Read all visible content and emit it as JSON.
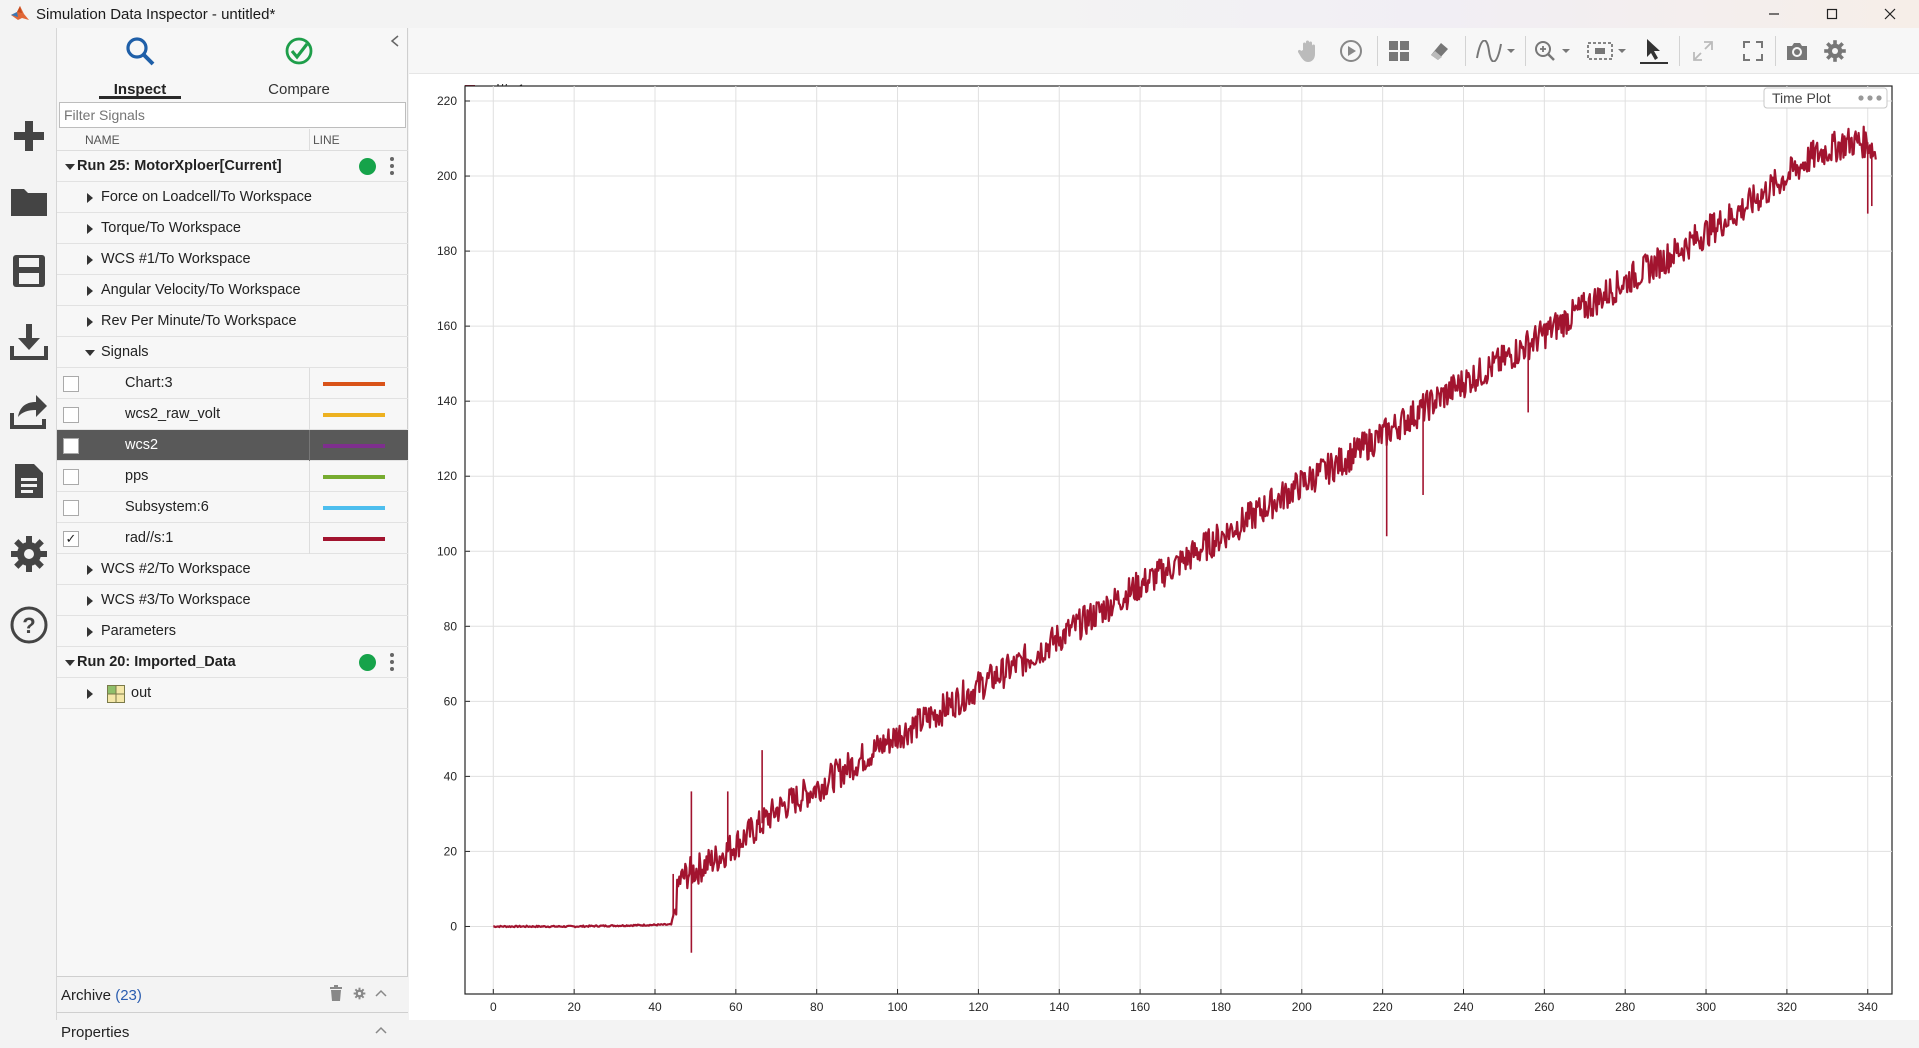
{
  "window": {
    "title": "Simulation Data Inspector - untitled*"
  },
  "tabs": {
    "inspect": "Inspect",
    "compare": "Compare"
  },
  "filter": {
    "placeholder": "Filter Signals"
  },
  "columns": {
    "name": "NAME",
    "line": "LINE"
  },
  "tree": {
    "run25": "Run 25: MotorXploer[Current]",
    "run25_children": [
      "Force on Loadcell/To Workspace",
      "Torque/To Workspace",
      "WCS #1/To Workspace",
      "Angular Velocity/To Workspace",
      "Rev Per Minute/To Workspace"
    ],
    "signals_group": "Signals",
    "signals": [
      {
        "name": "Chart:3",
        "color": "#d95319",
        "checked": false,
        "selected": false
      },
      {
        "name": "wcs2_raw_volt",
        "color": "#edb120",
        "checked": false,
        "selected": false
      },
      {
        "name": "wcs2",
        "color": "#7e2f8e",
        "checked": false,
        "selected": true
      },
      {
        "name": "pps",
        "color": "#77ac30",
        "checked": false,
        "selected": false
      },
      {
        "name": "Subsystem:6",
        "color": "#4dbeee",
        "checked": false,
        "selected": false
      },
      {
        "name": "rad//s:1",
        "color": "#a2142f",
        "checked": true,
        "selected": false
      }
    ],
    "run25_after": [
      "WCS #2/To Workspace",
      "WCS #3/To Workspace",
      "Parameters"
    ],
    "run20": "Run 20: Imported_Data",
    "run20_children": [
      "out"
    ]
  },
  "archive": {
    "label": "Archive",
    "count": "(23)"
  },
  "properties": {
    "label": "Properties"
  },
  "plot": {
    "legend": "rad//s:1",
    "badge": "Time Plot"
  },
  "chart_data": {
    "type": "line",
    "series": [
      {
        "name": "rad//s:1",
        "color": "#a2142f",
        "x": [
          0,
          20,
          44,
          45,
          46,
          48,
          50,
          55,
          60,
          66,
          70,
          80,
          90,
          100,
          110,
          120,
          130,
          140,
          150,
          160,
          170,
          180,
          190,
          200,
          210,
          220,
          230,
          240,
          250,
          260,
          270,
          280,
          290,
          300,
          310,
          320,
          326,
          330,
          335,
          340,
          342
        ],
        "y": [
          0,
          0,
          0.5,
          5,
          12,
          14,
          15,
          18,
          22,
          27,
          31,
          37,
          44,
          51,
          57,
          64,
          70,
          77,
          84,
          91,
          97,
          104,
          111,
          118,
          124,
          131,
          138,
          145,
          151,
          158,
          165,
          172,
          178,
          185,
          192,
          200,
          205,
          207,
          209,
          209,
          206
        ]
      }
    ],
    "x_ticks": [
      "0",
      "20",
      "40",
      "60",
      "80",
      "100",
      "120",
      "140",
      "160",
      "180",
      "200",
      "220",
      "240",
      "260",
      "280",
      "300",
      "320",
      "340"
    ],
    "y_ticks": [
      "0",
      "20",
      "40",
      "60",
      "80",
      "100",
      "120",
      "140",
      "160",
      "180",
      "200",
      "220"
    ],
    "xlim": [
      -7,
      346
    ],
    "ylim": [
      -18,
      224
    ],
    "grid": true,
    "legend_position": "top-left"
  }
}
